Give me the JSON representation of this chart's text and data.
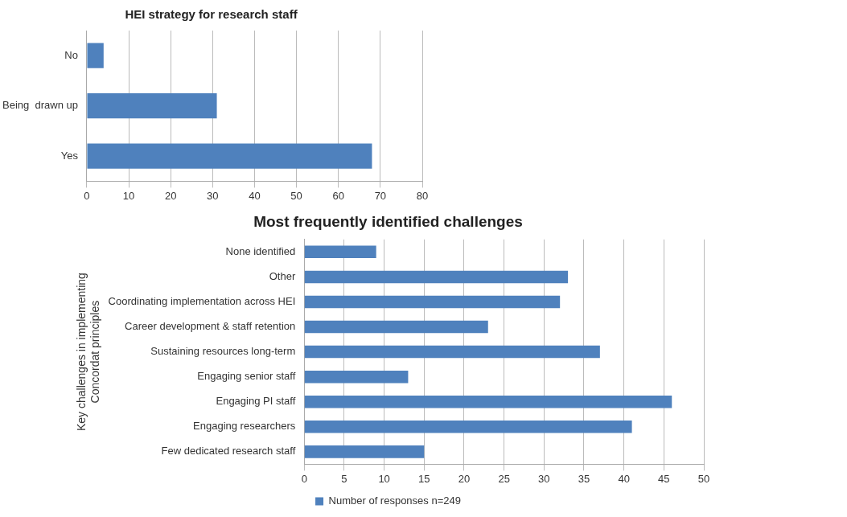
{
  "chart_data": [
    {
      "type": "bar",
      "title": "HEI strategy for research staff",
      "orientation": "horizontal",
      "categories": [
        "No",
        "Being  drawn up",
        "Yes"
      ],
      "series": [
        {
          "color": "#4f81bd",
          "values": [
            4,
            31,
            68
          ]
        }
      ],
      "xlim": [
        0,
        80
      ],
      "xticks": [
        0,
        10,
        20,
        30,
        40,
        50,
        60,
        70,
        80
      ],
      "grid": "x",
      "legend": false
    },
    {
      "type": "bar",
      "title": "Most frequently identified challenges",
      "orientation": "horizontal",
      "ylabel": "Key challenges in implementing\nConcordat principles",
      "categories": [
        "None identified",
        "Other",
        "Coordinating implementation across HEI",
        "Career development & staff retention",
        "Sustaining resources long-term",
        "Engaging senior staff",
        "Engaging PI staff",
        "Engaging researchers",
        "Few dedicated research staff"
      ],
      "series": [
        {
          "name": "Number of responses n=249",
          "color": "#4f81bd",
          "values": [
            9,
            33,
            32,
            23,
            37,
            13,
            46,
            41,
            15
          ]
        }
      ],
      "xlim": [
        0,
        50
      ],
      "xticks": [
        0,
        5,
        10,
        15,
        20,
        25,
        30,
        35,
        40,
        45,
        50
      ],
      "grid": "x",
      "legend": "bottom"
    }
  ]
}
